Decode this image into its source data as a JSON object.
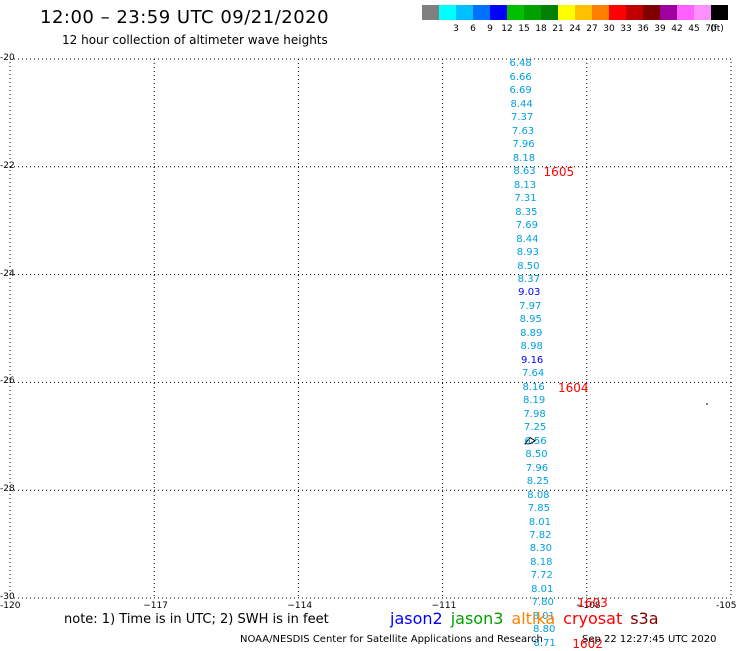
{
  "header": {
    "title": "12:00 – 23:59 UTC 09/21/2020",
    "subtitle": "12 hour collection of altimeter wave heights"
  },
  "scale": {
    "unit": "(ft)",
    "bins": [
      {
        "color": "#808080",
        "label": ""
      },
      {
        "color": "#00ffff",
        "label": "3"
      },
      {
        "color": "#00c0ff",
        "label": "6"
      },
      {
        "color": "#0070ff",
        "label": "9"
      },
      {
        "color": "#0000ff",
        "label": "12"
      },
      {
        "color": "#00c000",
        "label": "15"
      },
      {
        "color": "#00a000",
        "label": "18"
      },
      {
        "color": "#008000",
        "label": "21"
      },
      {
        "color": "#ffff00",
        "label": "24"
      },
      {
        "color": "#ffc000",
        "label": "27"
      },
      {
        "color": "#ff8000",
        "label": "30"
      },
      {
        "color": "#ff0000",
        "label": "33"
      },
      {
        "color": "#c00000",
        "label": "36"
      },
      {
        "color": "#800000",
        "label": "39"
      },
      {
        "color": "#a000a0",
        "label": "42"
      },
      {
        "color": "#ff60ff",
        "label": "45"
      },
      {
        "color": "#ff90ff",
        "label": "70"
      },
      {
        "color": "#000000",
        "label": ""
      }
    ]
  },
  "map": {
    "lat_ticks": [
      "-20",
      "-22",
      "-24",
      "-26",
      "-28",
      "-30"
    ],
    "lat_values": [
      -20,
      -22,
      -24,
      -26,
      -28,
      -30
    ],
    "lon_ticks": [
      "-120",
      "−117",
      "−114",
      "−111",
      "−108",
      "-105"
    ],
    "lon_values": [
      -120,
      -117,
      -114,
      -111,
      -108,
      -105
    ],
    "lat_range": [
      -20,
      -30
    ],
    "lon_range": [
      -120,
      -105
    ],
    "observations": [
      {
        "lon": -109.4,
        "lat": -20.1,
        "value": "6.48",
        "color": "#00a0e0"
      },
      {
        "lon": -109.4,
        "lat": -20.35,
        "value": "6.66",
        "color": "#00a0e0"
      },
      {
        "lon": -109.4,
        "lat": -20.6,
        "value": "6.69",
        "color": "#00a0e0"
      },
      {
        "lon": -109.38,
        "lat": -20.85,
        "value": "8.44",
        "color": "#00a0e0"
      },
      {
        "lon": -109.37,
        "lat": -21.1,
        "value": "7.37",
        "color": "#00a0e0"
      },
      {
        "lon": -109.35,
        "lat": -21.35,
        "value": "7.63",
        "color": "#00a0e0"
      },
      {
        "lon": -109.34,
        "lat": -21.6,
        "value": "7.96",
        "color": "#00a0e0"
      },
      {
        "lon": -109.33,
        "lat": -21.85,
        "value": "8.18",
        "color": "#00a0e0"
      },
      {
        "lon": -109.32,
        "lat": -22.1,
        "value": "8.63",
        "color": "#00a0e0"
      },
      {
        "lon": -109.31,
        "lat": -22.35,
        "value": "8.13",
        "color": "#00a0e0"
      },
      {
        "lon": -109.3,
        "lat": -22.6,
        "value": "7.31",
        "color": "#00a0e0"
      },
      {
        "lon": -109.28,
        "lat": -22.85,
        "value": "8.35",
        "color": "#00a0e0"
      },
      {
        "lon": -109.27,
        "lat": -23.1,
        "value": "7.69",
        "color": "#00a0e0"
      },
      {
        "lon": -109.26,
        "lat": -23.35,
        "value": "8.44",
        "color": "#00a0e0"
      },
      {
        "lon": -109.25,
        "lat": -23.6,
        "value": "8.93",
        "color": "#00a0e0"
      },
      {
        "lon": -109.24,
        "lat": -23.85,
        "value": "8.50",
        "color": "#00a0e0"
      },
      {
        "lon": -109.23,
        "lat": -24.1,
        "value": "8.37",
        "color": "#00a0e0"
      },
      {
        "lon": -109.22,
        "lat": -24.35,
        "value": "9.03",
        "color": "#0000ff"
      },
      {
        "lon": -109.2,
        "lat": -24.6,
        "value": "7.97",
        "color": "#00a0e0"
      },
      {
        "lon": -109.19,
        "lat": -24.85,
        "value": "8.95",
        "color": "#00a0e0"
      },
      {
        "lon": -109.18,
        "lat": -25.1,
        "value": "8.89",
        "color": "#00a0e0"
      },
      {
        "lon": -109.17,
        "lat": -25.35,
        "value": "8.98",
        "color": "#00a0e0"
      },
      {
        "lon": -109.16,
        "lat": -25.6,
        "value": "9.16",
        "color": "#0000ff"
      },
      {
        "lon": -109.14,
        "lat": -25.85,
        "value": "7.64",
        "color": "#00a0e0"
      },
      {
        "lon": -109.13,
        "lat": -26.1,
        "value": "8.16",
        "color": "#00a0e0"
      },
      {
        "lon": -109.12,
        "lat": -26.35,
        "value": "8.19",
        "color": "#00a0e0"
      },
      {
        "lon": -109.11,
        "lat": -26.6,
        "value": "7.98",
        "color": "#00a0e0"
      },
      {
        "lon": -109.1,
        "lat": -26.85,
        "value": "7.25",
        "color": "#00a0e0"
      },
      {
        "lon": -109.09,
        "lat": -27.1,
        "value": "6.56",
        "color": "#00a0e0"
      },
      {
        "lon": -109.07,
        "lat": -27.35,
        "value": "8.50",
        "color": "#00a0e0"
      },
      {
        "lon": -109.06,
        "lat": -27.6,
        "value": "7.96",
        "color": "#00a0e0"
      },
      {
        "lon": -109.04,
        "lat": -27.85,
        "value": "8.25",
        "color": "#00a0e0"
      },
      {
        "lon": -109.03,
        "lat": -28.1,
        "value": "8.08",
        "color": "#00a0e0"
      },
      {
        "lon": -109.02,
        "lat": -28.35,
        "value": "7.85",
        "color": "#00a0e0"
      },
      {
        "lon": -109.0,
        "lat": -28.6,
        "value": "8.01",
        "color": "#00a0e0"
      },
      {
        "lon": -108.99,
        "lat": -28.85,
        "value": "7.82",
        "color": "#00a0e0"
      },
      {
        "lon": -108.98,
        "lat": -29.1,
        "value": "8.30",
        "color": "#00a0e0"
      },
      {
        "lon": -108.97,
        "lat": -29.35,
        "value": "8.18",
        "color": "#00a0e0"
      },
      {
        "lon": -108.96,
        "lat": -29.6,
        "value": "7.72",
        "color": "#00a0e0"
      },
      {
        "lon": -108.95,
        "lat": -29.85,
        "value": "8.01",
        "color": "#00a0e0"
      },
      {
        "lon": -108.94,
        "lat": -30.1,
        "value": "7.80",
        "color": "#00a0e0"
      },
      {
        "lon": -108.92,
        "lat": -30.35,
        "value": "8.01",
        "color": "#00a0e0"
      },
      {
        "lon": -108.91,
        "lat": -30.6,
        "value": "8.80",
        "color": "#00a0e0"
      },
      {
        "lon": -108.9,
        "lat": -30.85,
        "value": "8.71",
        "color": "#00a0e0"
      }
    ],
    "passes": [
      {
        "lon": -108.65,
        "lat": -22.1,
        "label": "1605"
      },
      {
        "lon": -108.35,
        "lat": -26.1,
        "label": "1604"
      },
      {
        "lon": -107.95,
        "lat": -30.1,
        "label": "1603"
      },
      {
        "lon": -108.05,
        "lat": -30.85,
        "label": "1602"
      }
    ],
    "islands": [
      {
        "lon": -109.2,
        "lat": -27.1,
        "name": "easter-island"
      },
      {
        "lon": -105.5,
        "lat": -26.4,
        "name": "sala-y-gomez"
      }
    ]
  },
  "footer": {
    "note": "note: 1) Time is in UTC; 2) SWH is in feet",
    "satellites": [
      {
        "name": "jason2",
        "color": "#0000ff"
      },
      {
        "name": "jason3",
        "color": "#00a000"
      },
      {
        "name": "altika",
        "color": "#ff8000"
      },
      {
        "name": "cryosat",
        "color": "#ff0000"
      },
      {
        "name": "s3a",
        "color": "#800000"
      }
    ],
    "credit": "NOAA/NESDIS Center for Satellite Applications and Research",
    "timestamp": "Sep 22 12:27:45 UTC 2020"
  }
}
